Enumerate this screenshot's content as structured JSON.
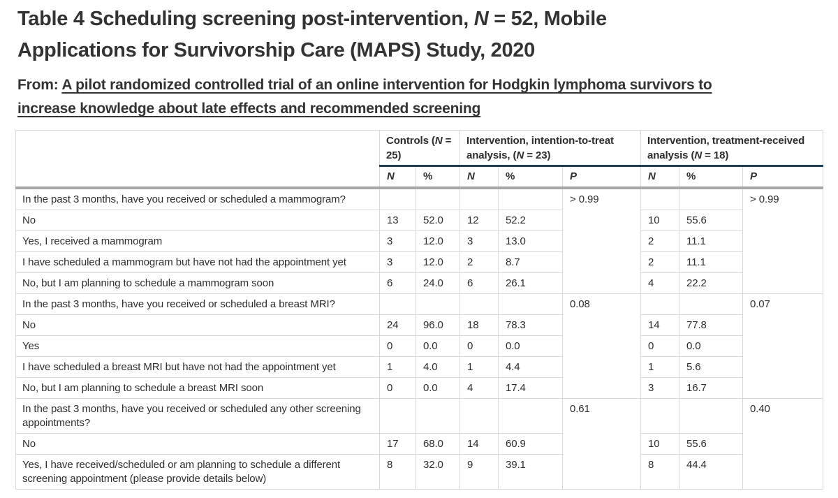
{
  "page": {
    "title": {
      "pre": "Table 4 Scheduling screening post-intervention, ",
      "n": "N",
      "post": " = 52, Mobile Applications for Survivorship Care (MAPS) Study, 2020"
    },
    "from_label": "From: ",
    "source_link": "A pilot randomized controlled trial of an online intervention for Hodgkin lymphoma survivors to increase knowledge about late effects and recommended screening"
  },
  "table": {
    "header": {
      "groups": [
        {
          "pre": "Controls (",
          "n": "N",
          "post": " = 25)"
        },
        {
          "pre": "Intervention, intention-to-treat analysis, (",
          "n": "N",
          "post": " = 23)"
        },
        {
          "pre": "Intervention, treatment-received analysis (",
          "n": "N",
          "post": " = 18)"
        }
      ],
      "subcols": [
        "N",
        "%",
        "N",
        "%",
        "P",
        "N",
        "%",
        "P"
      ]
    },
    "sections": [
      {
        "question": "In the past 3 months, have you received or scheduled a mammogram?",
        "p_itt": "> 0.99",
        "p_tr": "> 0.99",
        "rows": [
          {
            "label": "No",
            "values": [
              "13",
              "52.0",
              "12",
              "52.2",
              "10",
              "55.6"
            ]
          },
          {
            "label": "Yes, I received a mammogram",
            "values": [
              "3",
              "12.0",
              "3",
              "13.0",
              "2",
              "11.1"
            ]
          },
          {
            "label": "I have scheduled a mammogram but have not had the appointment yet",
            "values": [
              "3",
              "12.0",
              "2",
              "8.7",
              "2",
              "11.1"
            ]
          },
          {
            "label": "No, but I am planning to schedule a mammogram soon",
            "values": [
              "6",
              "24.0",
              "6",
              "26.1",
              "4",
              "22.2"
            ]
          }
        ]
      },
      {
        "question": "In the past 3 months, have you received or scheduled a breast MRI?",
        "p_itt": "0.08",
        "p_tr": "0.07",
        "rows": [
          {
            "label": "No",
            "values": [
              "24",
              "96.0",
              "18",
              "78.3",
              "14",
              "77.8"
            ]
          },
          {
            "label": "Yes",
            "values": [
              "0",
              "0.0",
              "0",
              "0.0",
              "0",
              "0.0"
            ]
          },
          {
            "label": "I have scheduled a breast MRI but have not had the appointment yet",
            "values": [
              "1",
              "4.0",
              "1",
              "4.4",
              "1",
              "5.6"
            ]
          },
          {
            "label": "No, but I am planning to schedule a breast MRI soon",
            "values": [
              "0",
              "0.0",
              "4",
              "17.4",
              "3",
              "16.7"
            ]
          }
        ]
      },
      {
        "question": "In the past 3 months, have you received or scheduled any other screening appointments?",
        "p_itt": "0.61",
        "p_tr": "0.40",
        "rows": [
          {
            "label": "No",
            "values": [
              "17",
              "68.0",
              "14",
              "60.9",
              "10",
              "55.6"
            ]
          },
          {
            "label": "Yes, I have received/scheduled or am planning to schedule a different screening appointment (please provide details below)",
            "values": [
              "8",
              "32.0",
              "9",
              "39.1",
              "8",
              "44.4"
            ]
          }
        ]
      }
    ]
  }
}
